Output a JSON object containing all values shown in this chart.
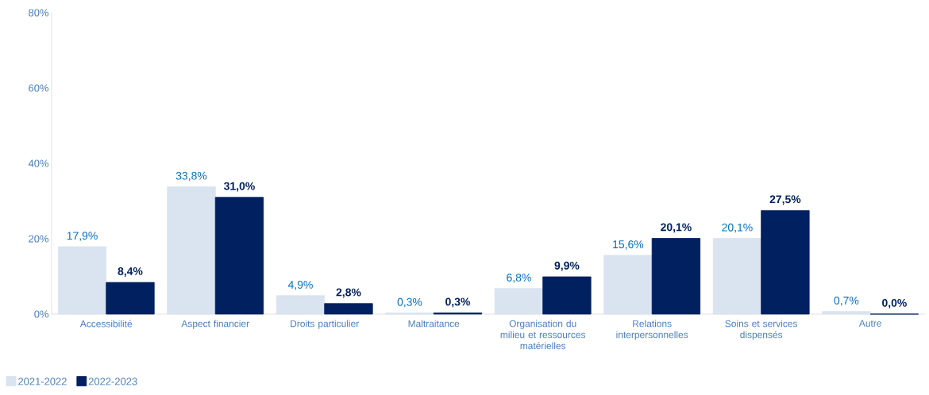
{
  "chart_data": {
    "type": "bar",
    "categories": [
      "Accessibilité",
      "Aspect financier",
      "Droits particulier",
      "Maltraitance",
      "Organisation du milieu et ressources matérielles",
      "Relations interpersonnelles",
      "Soins et services dispensés",
      "Autre"
    ],
    "series": [
      {
        "name": "2021-2022",
        "color": "#dae3f0",
        "values": [
          17.9,
          33.8,
          4.9,
          0.3,
          6.8,
          15.6,
          20.1,
          0.7
        ],
        "value_labels": [
          "17,9%",
          "33,8%",
          "4,9%",
          "0,3%",
          "6,8%",
          "15,6%",
          "20,1%",
          "0,7%"
        ]
      },
      {
        "name": "2022-2023",
        "color": "#002060",
        "values": [
          8.4,
          31.0,
          2.8,
          0.3,
          9.9,
          20.1,
          27.5,
          0.0
        ],
        "value_labels": [
          "8,4%",
          "31,0%",
          "2,8%",
          "0,3%",
          "9,9%",
          "20,1%",
          "27,5%",
          "0,0%"
        ]
      }
    ],
    "ylim": [
      0,
      80
    ],
    "yticks": [
      {
        "value": 0,
        "label": "0%"
      },
      {
        "value": 20,
        "label": "20%"
      },
      {
        "value": 40,
        "label": "40%"
      },
      {
        "value": 60,
        "label": "60%"
      },
      {
        "value": 80,
        "label": "80%"
      }
    ],
    "legend": "bottom left"
  }
}
